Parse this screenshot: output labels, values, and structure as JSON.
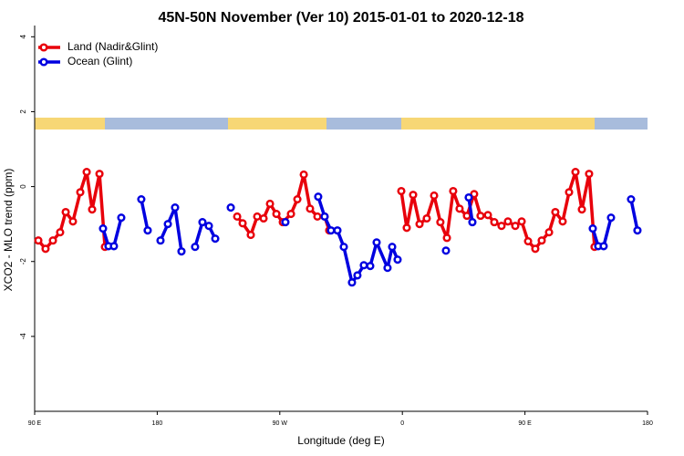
{
  "chart_data": {
    "type": "line",
    "title": "45N-50N November (Ver 10)   2015-01-01 to 2020-12-18",
    "x_label": "Longitude (deg E)",
    "y_label": "XCO2 - MLO trend (ppm)",
    "xlim": [
      90,
      540
    ],
    "xticks": [
      {
        "value": 90,
        "label": "90 E"
      },
      180,
      {
        "value": 270,
        "label": "90 W"
      },
      {
        "value": 360,
        "label": "0"
      },
      {
        "value": 450,
        "label": "90 E"
      },
      {
        "value": 540,
        "label": "180"
      }
    ],
    "ylim": [
      -6,
      4.3
    ],
    "yticks": [
      -4,
      -2,
      0,
      2,
      4
    ],
    "legend": "top-left",
    "series": [
      {
        "name": "Land (Nadir&Glint)",
        "color": "#e8000b",
        "x": [
          92.7,
          98.0,
          103.4,
          108.7,
          112.8,
          118.1,
          123.5,
          128.2,
          132.2,
          137.6,
          141.6,
          null,
          238.7,
          242.7,
          248.7,
          253.4,
          258.1,
          262.8,
          267.5,
          272.2,
          278.2,
          282.9,
          287.6,
          292.2,
          297.6,
          302.9,
          306.3,
          null,
          359.2,
          363.2,
          367.9,
          372.6,
          377.9,
          383.3,
          387.9,
          392.7,
          397.3,
          402.0,
          407.4,
          412.7,
          417.4,
          422.8,
          427.5,
          432.8,
          437.5,
          442.9,
          447.6,
          452.3,
          457.6,
          462.3,
          467.7,
          472.3,
          477.7,
          482.4,
          487.1,
          491.8,
          497.1,
          501.1
        ],
        "values": [
          -1.44,
          -1.66,
          -1.44,
          -1.22,
          -0.68,
          -0.93,
          -0.15,
          0.39,
          -0.61,
          0.34,
          -1.61,
          null,
          -0.8,
          -0.98,
          -1.29,
          -0.8,
          -0.85,
          -0.46,
          -0.73,
          -0.95,
          -0.73,
          -0.34,
          0.32,
          -0.59,
          -0.8,
          -0.8,
          -1.17,
          null,
          -0.12,
          -1.1,
          -0.22,
          -1.0,
          -0.85,
          -0.24,
          -0.95,
          -1.37,
          -0.12,
          -0.59,
          -0.78,
          -0.2,
          -0.78,
          -0.76,
          -0.95,
          -1.05,
          -0.93,
          -1.05,
          -0.93,
          -1.46,
          -1.66,
          -1.44,
          -1.22,
          -0.68,
          -0.93,
          -0.15,
          0.39,
          -0.61,
          0.34,
          -1.61
        ]
      },
      {
        "name": "Ocean (Glint)",
        "color": "#0000e0",
        "x": [
          140.2,
          144.2,
          148.2,
          153.6,
          null,
          168.3,
          173.0,
          null,
          182.4,
          187.8,
          193.1,
          197.8,
          null,
          207.8,
          213.2,
          217.9,
          222.6,
          null,
          234.0,
          null,
          274.1,
          null,
          298.2,
          302.9,
          307.6,
          312.3,
          317.0,
          323.0,
          327.0,
          331.7,
          336.4,
          341.1,
          349.1,
          352.5,
          356.5,
          null,
          392.0,
          null,
          408.7,
          411.4,
          null,
          499.8,
          503.8,
          507.8,
          513.2,
          null,
          527.9,
          532.6
        ],
        "values": [
          -1.12,
          -1.59,
          -1.59,
          -0.83,
          null,
          -0.34,
          -1.17,
          null,
          -1.44,
          -1.0,
          -0.56,
          -1.73,
          null,
          -1.61,
          -0.95,
          -1.05,
          -1.39,
          null,
          -0.56,
          null,
          -0.95,
          null,
          -0.27,
          -0.8,
          -1.17,
          -1.17,
          -1.61,
          -2.56,
          -2.37,
          -2.1,
          -2.12,
          -1.49,
          -2.17,
          -1.61,
          -1.95,
          null,
          -1.71,
          null,
          -0.29,
          -0.95,
          null,
          -1.12,
          -1.59,
          -1.59,
          -0.83,
          null,
          -0.34,
          -1.17
        ]
      }
    ]
  }
}
